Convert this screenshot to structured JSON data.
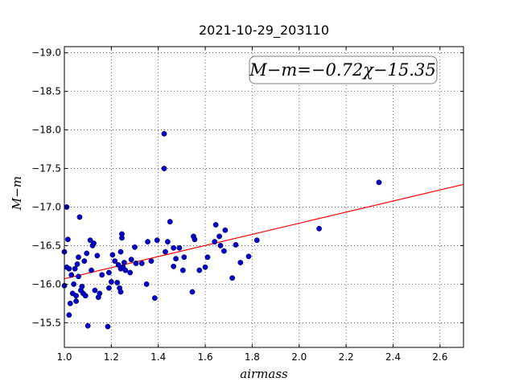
{
  "chart_data": {
    "type": "scatter",
    "title": "2021-10-29_203110",
    "xlabel": "airmass",
    "ylabel": "M−m",
    "xlim": [
      1.0,
      2.7
    ],
    "ylim": [
      -19.08,
      -15.18
    ],
    "y_inverted": true,
    "grid": true,
    "xticks": [
      1.0,
      1.2,
      1.4,
      1.6,
      1.8,
      2.0,
      2.2,
      2.4,
      2.6
    ],
    "xtick_labels": [
      "1.0",
      "1.2",
      "1.4",
      "1.6",
      "1.8",
      "2.0",
      "2.2",
      "2.4",
      "2.6"
    ],
    "yticks": [
      -15.5,
      -16.0,
      -16.5,
      -17.0,
      -17.5,
      -18.0,
      -18.5,
      -19.0
    ],
    "ytick_labels": [
      "−15.5",
      "−16.0",
      "−16.5",
      "−17.0",
      "−17.5",
      "−18.0",
      "−18.5",
      "−19.0"
    ],
    "annotation": "M−m=−0.72χ−15.35",
    "fit": {
      "slope": -0.72,
      "intercept": -15.35,
      "x_range": [
        1.0,
        2.7
      ],
      "color": "#ff0000"
    },
    "marker_color": "#0000cc",
    "points": [
      [
        1.0,
        -15.98
      ],
      [
        1.0,
        -16.42
      ],
      [
        1.01,
        -17.0
      ],
      [
        1.01,
        -16.22
      ],
      [
        1.015,
        -16.58
      ],
      [
        1.02,
        -15.6
      ],
      [
        1.02,
        -16.2
      ],
      [
        1.025,
        -15.75
      ],
      [
        1.03,
        -16.12
      ],
      [
        1.035,
        -15.88
      ],
      [
        1.04,
        -16.0
      ],
      [
        1.045,
        -16.2
      ],
      [
        1.05,
        -15.78
      ],
      [
        1.05,
        -15.85
      ],
      [
        1.055,
        -16.26
      ],
      [
        1.06,
        -16.1
      ],
      [
        1.06,
        -16.35
      ],
      [
        1.065,
        -16.87
      ],
      [
        1.07,
        -15.92
      ],
      [
        1.075,
        -15.97
      ],
      [
        1.08,
        -15.88
      ],
      [
        1.085,
        -16.3
      ],
      [
        1.09,
        -15.85
      ],
      [
        1.095,
        -16.4
      ],
      [
        1.1,
        -15.46
      ],
      [
        1.11,
        -16.57
      ],
      [
        1.115,
        -16.18
      ],
      [
        1.12,
        -16.5
      ],
      [
        1.125,
        -16.53
      ],
      [
        1.13,
        -15.92
      ],
      [
        1.14,
        -16.37
      ],
      [
        1.145,
        -15.83
      ],
      [
        1.15,
        -15.88
      ],
      [
        1.16,
        -16.12
      ],
      [
        1.185,
        -15.45
      ],
      [
        1.19,
        -15.95
      ],
      [
        1.19,
        -16.15
      ],
      [
        1.2,
        -16.03
      ],
      [
        1.205,
        -16.38
      ],
      [
        1.215,
        -16.3
      ],
      [
        1.225,
        -16.02
      ],
      [
        1.23,
        -16.25
      ],
      [
        1.235,
        -15.95
      ],
      [
        1.24,
        -16.2
      ],
      [
        1.24,
        -16.42
      ],
      [
        1.24,
        -15.9
      ],
      [
        1.245,
        -16.6
      ],
      [
        1.245,
        -16.65
      ],
      [
        1.25,
        -16.22
      ],
      [
        1.255,
        -16.28
      ],
      [
        1.26,
        -16.18
      ],
      [
        1.28,
        -16.15
      ],
      [
        1.285,
        -16.32
      ],
      [
        1.3,
        -16.48
      ],
      [
        1.305,
        -16.27
      ],
      [
        1.33,
        -16.27
      ],
      [
        1.35,
        -16.0
      ],
      [
        1.355,
        -16.55
      ],
      [
        1.37,
        -16.3
      ],
      [
        1.385,
        -15.82
      ],
      [
        1.395,
        -16.57
      ],
      [
        1.425,
        -17.5
      ],
      [
        1.425,
        -17.95
      ],
      [
        1.43,
        -16.42
      ],
      [
        1.44,
        -16.55
      ],
      [
        1.45,
        -16.81
      ],
      [
        1.465,
        -16.23
      ],
      [
        1.465,
        -16.47
      ],
      [
        1.475,
        -16.33
      ],
      [
        1.49,
        -16.47
      ],
      [
        1.505,
        -16.18
      ],
      [
        1.51,
        -16.35
      ],
      [
        1.545,
        -15.9
      ],
      [
        1.55,
        -16.62
      ],
      [
        1.555,
        -16.58
      ],
      [
        1.575,
        -16.18
      ],
      [
        1.6,
        -16.22
      ],
      [
        1.61,
        -16.35
      ],
      [
        1.64,
        -16.55
      ],
      [
        1.645,
        -16.77
      ],
      [
        1.66,
        -16.62
      ],
      [
        1.665,
        -16.5
      ],
      [
        1.68,
        -16.43
      ],
      [
        1.685,
        -16.7
      ],
      [
        1.715,
        -16.08
      ],
      [
        1.73,
        -16.51
      ],
      [
        1.75,
        -16.28
      ],
      [
        1.785,
        -16.36
      ],
      [
        1.82,
        -16.57
      ],
      [
        2.085,
        -16.72
      ],
      [
        2.34,
        -17.32
      ]
    ]
  }
}
